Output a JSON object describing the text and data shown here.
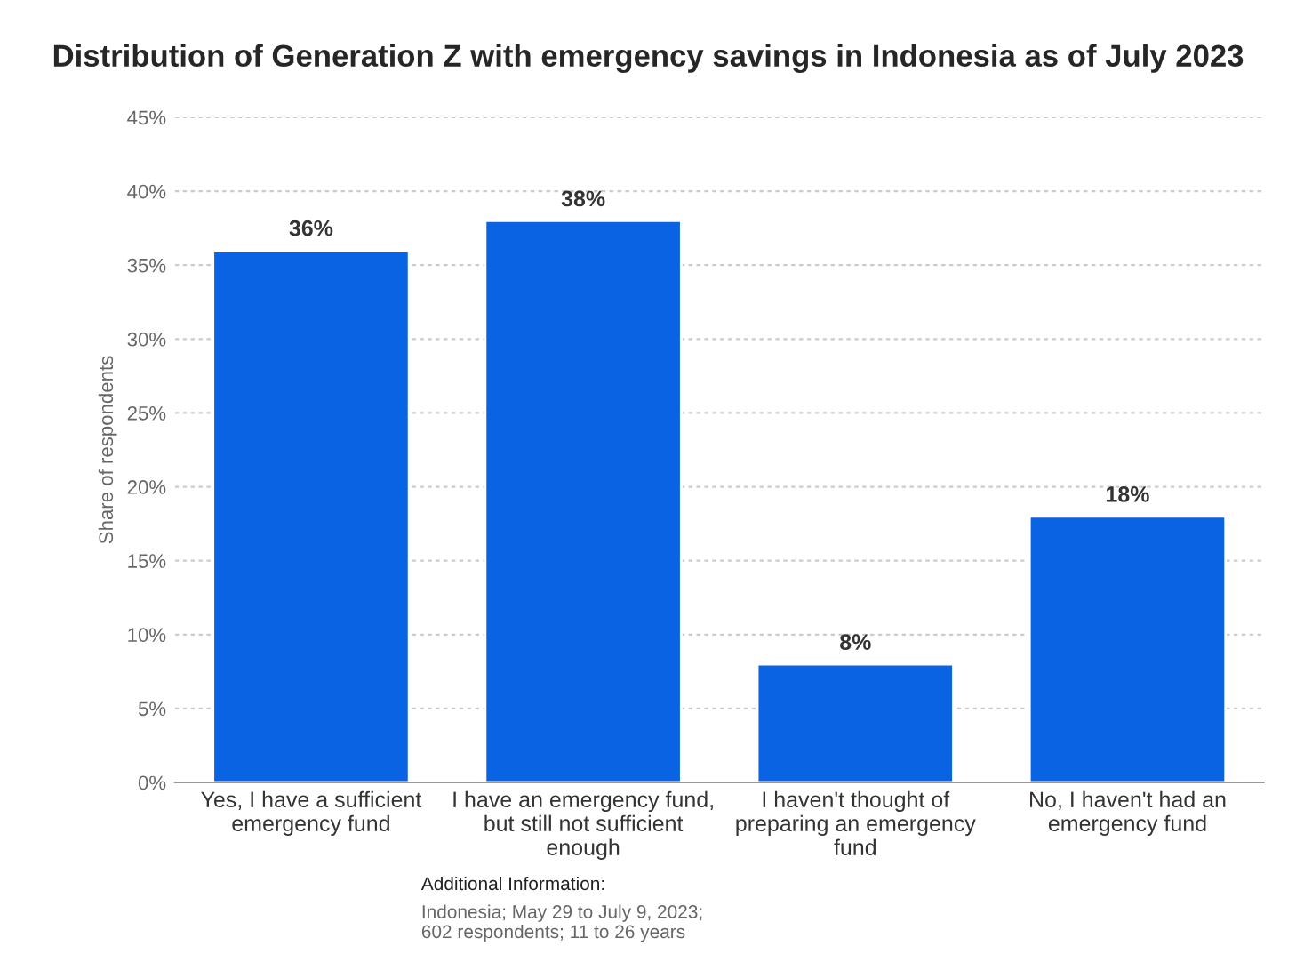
{
  "chart_data": {
    "type": "bar",
    "title": "Distribution of Generation Z with emergency savings in Indonesia as of July 2023",
    "ylabel": "Share of respondents",
    "categories": [
      "Yes, I have a sufficient\nemergency fund",
      "I have an emergency fund,\nbut still not sufficient\nenough",
      "I haven't thought of\npreparing an emergency\nfund",
      "No, I haven't had an\nemergency fund"
    ],
    "values": [
      36,
      38,
      8,
      18
    ],
    "color": "#0a63e3",
    "value_labels": [
      "36%",
      "38%",
      "8%",
      "18%"
    ],
    "ylim": [
      0,
      45
    ],
    "yticks": [
      {
        "value": 0,
        "label": "0%"
      },
      {
        "value": 5,
        "label": "5%"
      },
      {
        "value": 10,
        "label": "10%"
      },
      {
        "value": 15,
        "label": "15%"
      },
      {
        "value": 20,
        "label": "20%"
      },
      {
        "value": 25,
        "label": "25%"
      },
      {
        "value": 30,
        "label": "30%"
      },
      {
        "value": 35,
        "label": "35%"
      },
      {
        "value": 40,
        "label": "40%"
      },
      {
        "value": 45,
        "label": "45%"
      }
    ],
    "grid": "y",
    "annotations": [
      "Additional Information:",
      "Indonesia; May 29 to July 9, 2023;\n602 respondents; 11 to 26 years"
    ]
  }
}
